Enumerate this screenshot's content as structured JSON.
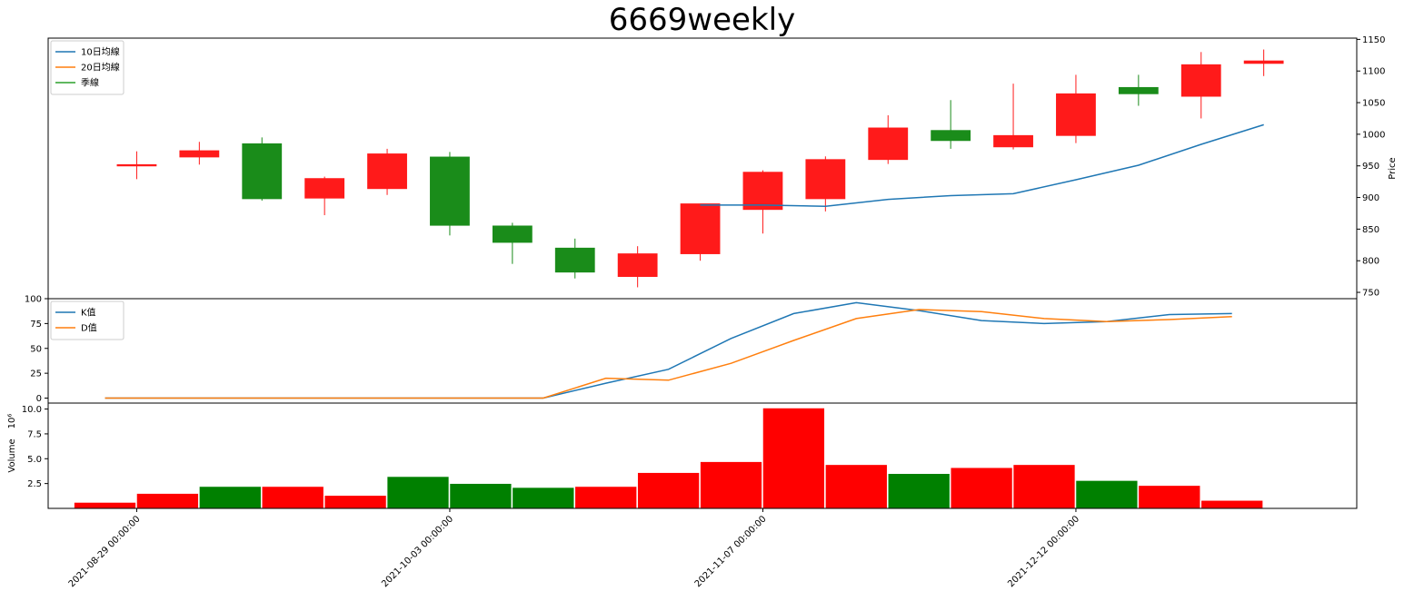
{
  "chart_data": {
    "type": "candlestick",
    "title": "6669weekly",
    "price_panel": {
      "ylabel": "Price",
      "ylim": [
        740,
        1152
      ],
      "yticks": [
        750,
        800,
        850,
        900,
        950,
        1000,
        1050,
        1100,
        1150
      ],
      "legend": [
        "10日均線",
        "20日均線",
        "季線"
      ],
      "legend_colors": [
        "#1f77b4",
        "#ff7f0e",
        "#2ca02c"
      ],
      "candles": [
        {
          "open": 952,
          "close": 952,
          "high": 973,
          "low": 929,
          "color": "red"
        },
        {
          "open": 964,
          "close": 974,
          "high": 988,
          "low": 952,
          "color": "red"
        },
        {
          "open": 985,
          "close": 898,
          "high": 995,
          "low": 895,
          "color": "green"
        },
        {
          "open": 899,
          "close": 930,
          "high": 933,
          "low": 872,
          "color": "red"
        },
        {
          "open": 914,
          "close": 969,
          "high": 977,
          "low": 904,
          "color": "red"
        },
        {
          "open": 964,
          "close": 856,
          "high": 972,
          "low": 840,
          "color": "green"
        },
        {
          "open": 855,
          "close": 829,
          "high": 860,
          "low": 795,
          "color": "green"
        },
        {
          "open": 820,
          "close": 782,
          "high": 835,
          "low": 772,
          "color": "green"
        },
        {
          "open": 775,
          "close": 811,
          "high": 823,
          "low": 758,
          "color": "red"
        },
        {
          "open": 811,
          "close": 890,
          "high": 890,
          "low": 800,
          "color": "red"
        },
        {
          "open": 881,
          "close": 940,
          "high": 943,
          "low": 843,
          "color": "red"
        },
        {
          "open": 898,
          "close": 960,
          "high": 965,
          "low": 878,
          "color": "red"
        },
        {
          "open": 960,
          "close": 1010,
          "high": 1030,
          "low": 953,
          "color": "red"
        },
        {
          "open": 1006,
          "close": 990,
          "high": 1054,
          "low": 977,
          "color": "green"
        },
        {
          "open": 980,
          "close": 998,
          "high": 1080,
          "low": 976,
          "color": "red"
        },
        {
          "open": 998,
          "close": 1064,
          "high": 1094,
          "low": 986,
          "color": "red"
        },
        {
          "open": 1074,
          "close": 1064,
          "high": 1094,
          "low": 1045,
          "color": "green"
        },
        {
          "open": 1060,
          "close": 1110,
          "high": 1130,
          "low": 1025,
          "color": "red"
        },
        {
          "open": 1112,
          "close": 1116,
          "high": 1134,
          "low": 1092,
          "color": "red"
        }
      ],
      "ma10": [
        null,
        null,
        null,
        null,
        null,
        null,
        null,
        null,
        null,
        888,
        888,
        886,
        897,
        903,
        906,
        928,
        951,
        984,
        1015
      ]
    },
    "kd_panel": {
      "ylim": [
        -5,
        100
      ],
      "yticks": [
        0,
        25,
        50,
        75,
        100
      ],
      "legend": [
        "K值",
        "D值"
      ],
      "legend_colors": [
        "#1f77b4",
        "#ff7f0e"
      ],
      "K": [
        0,
        0,
        0,
        0,
        0,
        0,
        0,
        0,
        15,
        29,
        60,
        85,
        96,
        88,
        78,
        75,
        77,
        84,
        85
      ],
      "D": [
        0,
        0,
        0,
        0,
        0,
        0,
        0,
        0,
        20,
        18,
        35,
        58,
        80,
        89,
        87,
        80,
        77,
        79,
        82
      ]
    },
    "volume_panel": {
      "ylabel": "Volume",
      "exponent": "10^6",
      "ylim": [
        0,
        10.6
      ],
      "yticks": [
        2.5,
        5.0,
        7.5,
        10.0
      ],
      "ytick_labels": [
        "2.5",
        "5.0",
        "7.5",
        "10.0"
      ],
      "values": [
        0.6,
        1.5,
        2.2,
        2.2,
        1.3,
        3.2,
        2.5,
        2.1,
        2.2,
        3.6,
        4.7,
        10.1,
        4.4,
        3.5,
        4.1,
        4.4,
        2.8,
        2.3,
        0.8
      ],
      "colors": [
        "red",
        "red",
        "green",
        "red",
        "red",
        "green",
        "green",
        "green",
        "red",
        "red",
        "red",
        "red",
        "red",
        "green",
        "red",
        "red",
        "green",
        "red",
        "red"
      ]
    },
    "x_tick_labels": [
      "2021-08-29 00:00:00",
      "2021-10-03 00:00:00",
      "2021-11-07 00:00:00",
      "2021-12-12 00:00:00"
    ],
    "x_tick_indices": [
      1,
      6,
      11,
      16
    ]
  }
}
